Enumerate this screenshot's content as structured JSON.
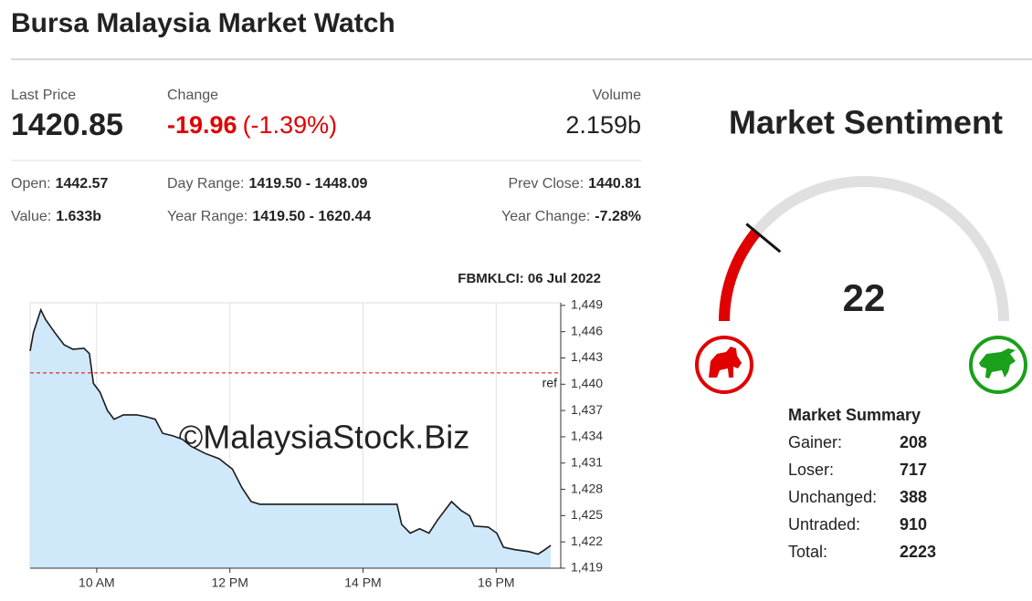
{
  "header": {
    "title": "Bursa Malaysia Market Watch"
  },
  "quote": {
    "last_price": {
      "label": "Last Price",
      "value": "1420.85"
    },
    "change": {
      "label": "Change",
      "value": "-19.96",
      "percent": "(-1.39%)",
      "color": "#e00000"
    },
    "volume": {
      "label": "Volume",
      "value": "2.159b"
    }
  },
  "details": [
    [
      {
        "label": "Open:",
        "value": "1442.57"
      },
      {
        "label": "Day Range:",
        "value": "1419.50 - 1448.09"
      },
      {
        "label": "Prev Close:",
        "value": "1440.81"
      }
    ],
    [
      {
        "label": "Value:",
        "value": "1.633b"
      },
      {
        "label": "Year Range:",
        "value": "1419.50 - 1620.44"
      },
      {
        "label": "Year Change:",
        "value": "-7.28%",
        "color": "#e00000"
      }
    ]
  ],
  "chart_data": {
    "type": "line",
    "title": "FBMKLCI: 06 Jul 2022",
    "watermark": "©MalaysiaStock.Biz",
    "color": "#1a1a1a",
    "fill_color": "#cfe8fa",
    "x": [
      9.0,
      9.05,
      9.16,
      9.23,
      9.37,
      9.51,
      9.64,
      9.81,
      9.89,
      9.95,
      10.05,
      10.16,
      10.26,
      10.4,
      10.6,
      10.74,
      10.88,
      10.99,
      11.15,
      11.29,
      11.42,
      11.63,
      11.84,
      12.04,
      12.18,
      12.32,
      12.45,
      14.51,
      14.58,
      14.71,
      14.85,
      14.99,
      15.12,
      15.33,
      15.47,
      15.6,
      15.67,
      15.88,
      16.01,
      16.11,
      16.29,
      16.49,
      16.63,
      16.73,
      16.82
    ],
    "values": [
      1443.8,
      1445.9,
      1448.5,
      1447.4,
      1445.9,
      1444.5,
      1444.0,
      1444.1,
      1443.5,
      1440.1,
      1439.1,
      1437.0,
      1436.0,
      1436.5,
      1436.5,
      1436.3,
      1436.0,
      1434.4,
      1434.1,
      1433.7,
      1432.9,
      1432.1,
      1431.5,
      1430.3,
      1428.2,
      1426.6,
      1426.3,
      1426.3,
      1424.0,
      1423.0,
      1423.5,
      1423.0,
      1424.5,
      1426.6,
      1425.6,
      1425.0,
      1423.8,
      1423.7,
      1423.0,
      1421.4,
      1421.1,
      1420.9,
      1420.6,
      1421.1,
      1421.6
    ],
    "xlim": [
      9.0,
      16.97
    ],
    "xticks": [
      {
        "value": 10,
        "label": "10 AM"
      },
      {
        "value": 12,
        "label": "12 PM"
      },
      {
        "value": 14,
        "label": "14 PM"
      },
      {
        "value": 16,
        "label": "16 PM"
      }
    ],
    "ylim": [
      1419,
      1449.3
    ],
    "yticks": [
      {
        "value": 1419,
        "label": "1,419"
      },
      {
        "value": 1422,
        "label": "1,422"
      },
      {
        "value": 1425,
        "label": "1,425"
      },
      {
        "value": 1428,
        "label": "1,428"
      },
      {
        "value": 1431,
        "label": "1,431"
      },
      {
        "value": 1434,
        "label": "1,434"
      },
      {
        "value": 1437,
        "label": "1,437"
      },
      {
        "value": 1440,
        "label": "1,440"
      },
      {
        "value": 1443,
        "label": "1,443"
      },
      {
        "value": 1446,
        "label": "1,446"
      },
      {
        "value": 1449,
        "label": "1,449"
      }
    ],
    "grid": "x",
    "ref_line": {
      "value": 1441.3,
      "label": "ref",
      "color": "#e00000"
    }
  },
  "sentiment": {
    "title": "Market Sentiment",
    "value": 22,
    "range": [
      0,
      100
    ],
    "color": "#e00000"
  },
  "summary": {
    "title": "Market Summary",
    "rows": [
      {
        "label": "Gainer:",
        "value": 208,
        "color": "#1a7f1a"
      },
      {
        "label": "Loser:",
        "value": 717,
        "color": "#e00000"
      },
      {
        "label": "Unchanged:",
        "value": 388
      },
      {
        "label": "Untraded:",
        "value": 910
      },
      {
        "label": "Total:",
        "value": 2223
      }
    ]
  }
}
